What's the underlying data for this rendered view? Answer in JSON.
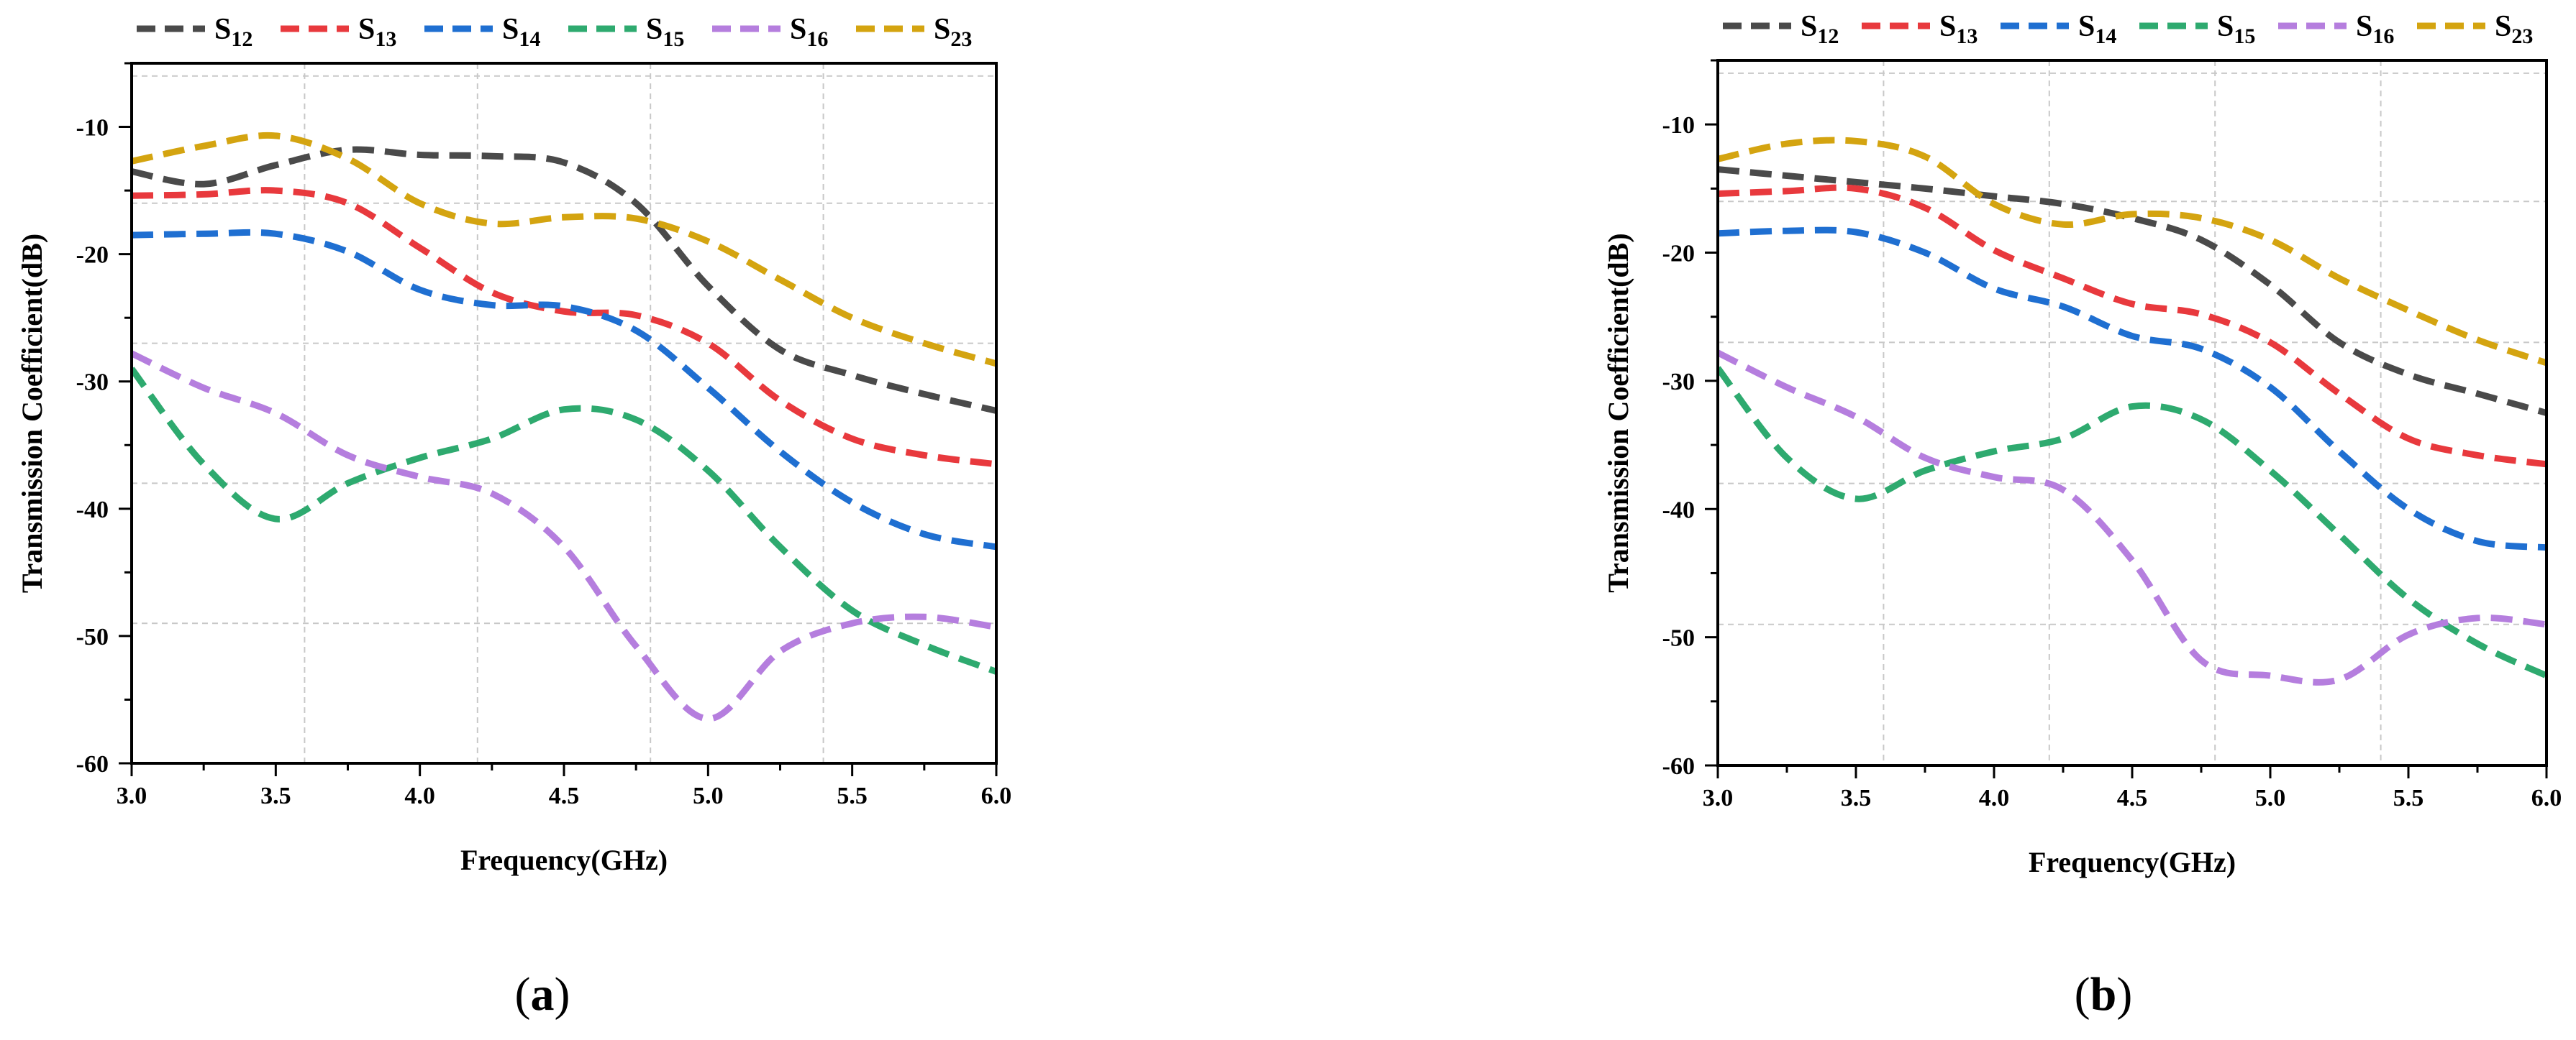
{
  "chart_data": [
    {
      "type": "line",
      "panel_label": "a",
      "xlabel": "Frequency(GHz)",
      "ylabel": "Transmission Coefficient(dB)",
      "xlim": [
        3.0,
        6.0
      ],
      "ylim": [
        -60,
        -5
      ],
      "xticks": [
        "3.0",
        "3.5",
        "4.0",
        "4.5",
        "5.0",
        "5.5",
        "6.0"
      ],
      "yticks": [
        "-10",
        "-20",
        "-30",
        "-40",
        "-50",
        "-60"
      ],
      "grid": true,
      "legend_position": "top",
      "x": [
        3.0,
        3.25,
        3.5,
        3.75,
        4.0,
        4.25,
        4.5,
        4.75,
        5.0,
        5.25,
        5.5,
        5.75,
        6.0
      ],
      "series": [
        {
          "name": "S",
          "subscript": "12",
          "color": "#4a4a4a",
          "values": [
            -13.5,
            -14.5,
            -13.0,
            -11.8,
            -12.2,
            -12.3,
            -12.8,
            -16.0,
            -22.5,
            -27.5,
            -29.5,
            -31.0,
            -32.3
          ]
        },
        {
          "name": "S",
          "subscript": "13",
          "color": "#e8393d",
          "values": [
            -15.4,
            -15.3,
            -15.0,
            -16.0,
            -19.5,
            -23.0,
            -24.5,
            -24.8,
            -27.0,
            -31.5,
            -34.5,
            -35.8,
            -36.5
          ]
        },
        {
          "name": "S",
          "subscript": "14",
          "color": "#1f6fd1",
          "values": [
            -18.5,
            -18.4,
            -18.4,
            -19.8,
            -22.8,
            -24.0,
            -24.1,
            -26.0,
            -30.5,
            -35.5,
            -39.5,
            -42.0,
            -43.0
          ]
        },
        {
          "name": "S",
          "subscript": "15",
          "color": "#2eaa6f",
          "values": [
            -29.0,
            -36.5,
            -40.8,
            -38.0,
            -36.0,
            -34.5,
            -32.2,
            -33.0,
            -37.0,
            -43.0,
            -48.0,
            -50.7,
            -52.8
          ]
        },
        {
          "name": "S",
          "subscript": "16",
          "color": "#b57ede",
          "values": [
            -27.8,
            -30.5,
            -32.5,
            -35.8,
            -37.5,
            -38.8,
            -43.0,
            -50.8,
            -56.5,
            -51.2,
            -49.0,
            -48.5,
            -49.3
          ]
        },
        {
          "name": "S",
          "subscript": "23",
          "color": "#d4a410",
          "values": [
            -12.7,
            -11.5,
            -10.7,
            -12.5,
            -16.0,
            -17.6,
            -17.1,
            -17.2,
            -19.0,
            -22.0,
            -25.0,
            -27.0,
            -28.6
          ]
        }
      ]
    },
    {
      "type": "line",
      "panel_label": "b",
      "xlabel": "Frequency(GHz)",
      "ylabel": "Transmission Coefficient(dB)",
      "xlim": [
        3.0,
        6.0
      ],
      "ylim": [
        -60,
        -5
      ],
      "xticks": [
        "3.0",
        "3.5",
        "4.0",
        "4.5",
        "5.0",
        "5.5",
        "6.0"
      ],
      "yticks": [
        "-10",
        "-20",
        "-30",
        "-40",
        "-50",
        "-60"
      ],
      "grid": true,
      "legend_position": "top",
      "x": [
        3.0,
        3.25,
        3.5,
        3.75,
        4.0,
        4.25,
        4.5,
        4.75,
        5.0,
        5.25,
        5.5,
        5.75,
        6.0
      ],
      "series": [
        {
          "name": "S",
          "subscript": "12",
          "color": "#4a4a4a",
          "values": [
            -13.5,
            -14.0,
            -14.5,
            -15.0,
            -15.6,
            -16.2,
            -17.3,
            -19.0,
            -22.5,
            -27.0,
            -29.5,
            -31.0,
            -32.5
          ]
        },
        {
          "name": "S",
          "subscript": "13",
          "color": "#e8393d",
          "values": [
            -15.4,
            -15.2,
            -15.0,
            -16.5,
            -19.8,
            -22.0,
            -24.0,
            -24.8,
            -27.0,
            -31.0,
            -34.5,
            -35.8,
            -36.5
          ]
        },
        {
          "name": "S",
          "subscript": "14",
          "color": "#1f6fd1",
          "values": [
            -18.5,
            -18.3,
            -18.4,
            -20.0,
            -22.8,
            -24.2,
            -26.5,
            -27.5,
            -30.5,
            -35.5,
            -40.0,
            -42.5,
            -43.0
          ]
        },
        {
          "name": "S",
          "subscript": "15",
          "color": "#2eaa6f",
          "values": [
            -29.0,
            -36.0,
            -39.2,
            -37.0,
            -35.5,
            -34.5,
            -32.0,
            -33.0,
            -37.0,
            -42.0,
            -47.0,
            -50.5,
            -53.0
          ]
        },
        {
          "name": "S",
          "subscript": "16",
          "color": "#b57ede",
          "values": [
            -27.8,
            -30.5,
            -32.8,
            -36.0,
            -37.5,
            -38.5,
            -44.0,
            -51.8,
            -53.0,
            -53.3,
            -49.8,
            -48.5,
            -49.0
          ]
        },
        {
          "name": "S",
          "subscript": "23",
          "color": "#d4a410",
          "values": [
            -12.7,
            -11.5,
            -11.3,
            -12.5,
            -16.2,
            -17.8,
            -17.0,
            -17.3,
            -19.0,
            -22.0,
            -24.5,
            -26.8,
            -28.6
          ]
        }
      ]
    }
  ]
}
